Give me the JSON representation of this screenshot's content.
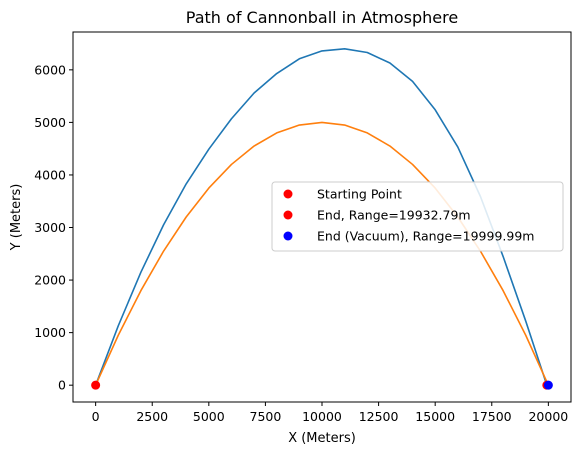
{
  "chart_data": {
    "type": "line",
    "title": "Path of Cannonball in Atmosphere",
    "xlabel": "X (Meters)",
    "ylabel": "Y (Meters)",
    "xlim": [
      -1000,
      21000
    ],
    "ylim": [
      -320,
      6720
    ],
    "xticks": [
      0,
      2500,
      5000,
      7500,
      10000,
      12500,
      15000,
      17500,
      20000
    ],
    "yticks": [
      0,
      1000,
      2000,
      3000,
      4000,
      5000,
      6000
    ],
    "grid": false,
    "legend_position": "center-right",
    "series": [
      {
        "kind": "line",
        "color": "#1f77b4",
        "x": [
          0,
          1000,
          2000,
          3000,
          4000,
          5000,
          6000,
          7000,
          8000,
          9000,
          10000,
          11000,
          12000,
          13000,
          14000,
          15000,
          16000,
          17000,
          18000,
          19000,
          19933
        ],
        "y": [
          0,
          1130,
          2150,
          3050,
          3830,
          4490,
          5070,
          5560,
          5930,
          6210,
          6360,
          6400,
          6330,
          6130,
          5780,
          5240,
          4530,
          3590,
          2450,
          1220,
          0
        ]
      },
      {
        "kind": "line",
        "color": "#ff7f0e",
        "x": [
          0,
          1000,
          2000,
          3000,
          4000,
          5000,
          6000,
          7000,
          8000,
          9000,
          10000,
          11000,
          12000,
          13000,
          14000,
          15000,
          16000,
          17000,
          18000,
          19000,
          20000
        ],
        "y": [
          0,
          950,
          1800,
          2550,
          3200,
          3750,
          4200,
          4550,
          4800,
          4950,
          5000,
          4950,
          4800,
          4550,
          4200,
          3750,
          3200,
          2550,
          1800,
          950,
          0
        ]
      },
      {
        "kind": "scatter",
        "name": "Starting Point",
        "color": "#ff0000",
        "x": [
          0
        ],
        "y": [
          0
        ]
      },
      {
        "kind": "scatter",
        "name": "End, Range=19932.79m",
        "color": "#ff0000",
        "x": [
          19932.79
        ],
        "y": [
          0
        ]
      },
      {
        "kind": "scatter",
        "name": "End (Vacuum), Range=19999.99m",
        "color": "#0000ff",
        "x": [
          19999.99
        ],
        "y": [
          0
        ]
      }
    ]
  }
}
